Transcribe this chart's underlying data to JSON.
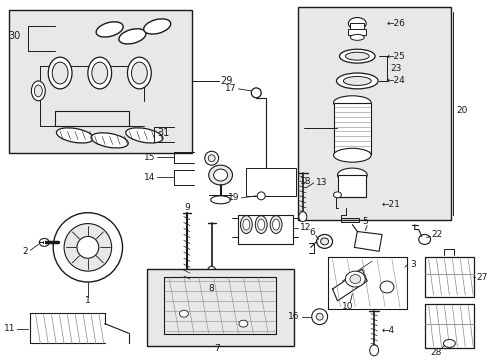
{
  "bg_color": "#ffffff",
  "gray": "#1a1a1a",
  "light_gray": "#888888",
  "fill_gray": "#e8e8e8"
}
